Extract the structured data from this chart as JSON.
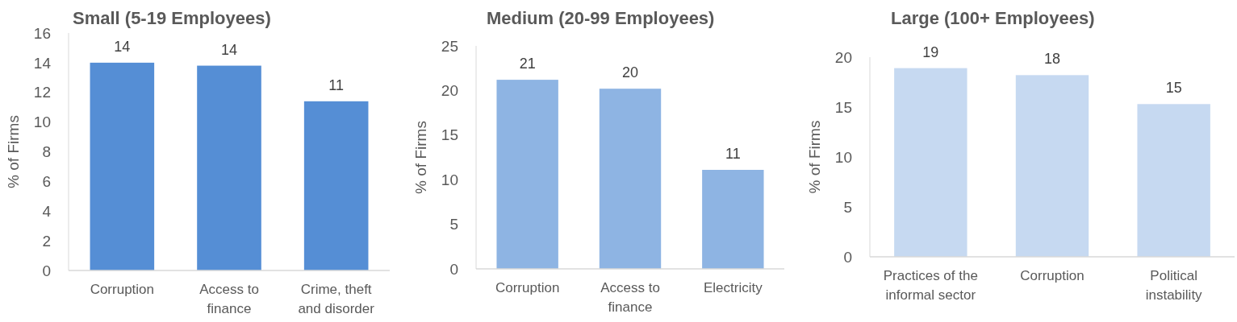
{
  "chart_data": [
    {
      "type": "bar",
      "title": "Small (5-19 Employees)",
      "ylabel": "% of Firms",
      "categories": [
        "Corruption",
        "Access to finance",
        "Crime, theft and disorder"
      ],
      "values": [
        14.0,
        13.8,
        11.4
      ],
      "value_labels": [
        "14",
        "14",
        "11"
      ],
      "color": "#558ed5",
      "ylim": [
        0,
        16
      ],
      "yticks": [
        0,
        2,
        4,
        6,
        8,
        10,
        12,
        14,
        16
      ]
    },
    {
      "type": "bar",
      "title": "Medium (20-99 Employees)",
      "ylabel": "% of Firms",
      "categories": [
        "Corruption",
        "Access to finance",
        "Electricity"
      ],
      "values": [
        21.2,
        20.2,
        11.1
      ],
      "value_labels": [
        "21",
        "20",
        "11"
      ],
      "color": "#8eb4e3",
      "ylim": [
        0,
        25
      ],
      "yticks": [
        0,
        5,
        10,
        15,
        20,
        25
      ]
    },
    {
      "type": "bar",
      "title": "Large (100+ Employees)",
      "ylabel": "% of Firms",
      "categories": [
        "Practices of the informal sector",
        "Corruption",
        "Political instability"
      ],
      "values": [
        18.9,
        18.2,
        15.3
      ],
      "value_labels": [
        "19",
        "18",
        "15"
      ],
      "color": "#c6d9f1",
      "ylim": [
        0,
        20
      ],
      "yticks": [
        0,
        5,
        10,
        15,
        20
      ]
    }
  ]
}
